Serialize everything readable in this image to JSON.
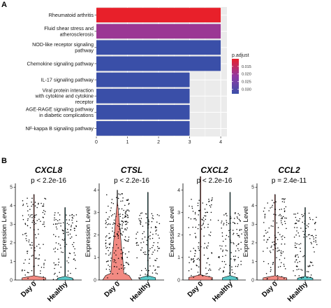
{
  "panels": {
    "a_label": "A",
    "b_label": "B"
  },
  "chart_data": [
    {
      "type": "bar",
      "orientation": "horizontal",
      "categories": [
        "Rheumatoid arthritis",
        "Fluid shear stress and atherosclerosis",
        "NOD-like receptor signaling pathway",
        "Chemokine signaling pathway",
        "IL-17 signaling pathway",
        "Viral protein interaction with cytokine and cytokine receptor",
        "AGE-RAGE signaling pathway in diabetic complications",
        "NF-kappa B signaling pathway"
      ],
      "category_lines": [
        [
          "Rheumatoid arthritis"
        ],
        [
          "Fluid shear stress and",
          "atherosclerosis"
        ],
        [
          "NOD-like receptor signaling",
          "pathway"
        ],
        [
          "Chemokine signaling pathway"
        ],
        [
          "IL-17 signaling pathway"
        ],
        [
          "Viral protein interaction",
          "with cytokine and cytokine",
          "receptor"
        ],
        [
          "AGE-RAGE signaling pathway",
          "in diabetic complications"
        ],
        [
          "NF-kappa B signaling pathway"
        ]
      ],
      "values": [
        4,
        4,
        4,
        4,
        3,
        3,
        3,
        3
      ],
      "p_adjust": [
        0.002,
        0.02,
        0.033,
        0.033,
        0.033,
        0.033,
        0.033,
        0.033
      ],
      "xlim": [
        0,
        4.2
      ],
      "xticks": [
        "0",
        "1",
        "2",
        "3",
        "4"
      ],
      "legend": {
        "title": "p.adjust",
        "ticks": [
          "0.015",
          "0.020",
          "0.025",
          "0.030"
        ],
        "range": [
          0.01,
          0.033
        ],
        "colors": [
          "#e8202a",
          "#8f3aa4",
          "#3a4fa8"
        ],
        "position": "right"
      },
      "grid": true
    },
    {
      "type": "violin",
      "panels": [
        {
          "gene": "CXCL8",
          "pvalue": "p < 2.2e-16",
          "ymax": 5.2,
          "yticks": [
            "0",
            "1",
            "2",
            "3",
            "4",
            "5"
          ],
          "groups": [
            "Day 0",
            "Healthy"
          ],
          "day0_highlight": false
        },
        {
          "gene": "CTSL",
          "pvalue": "p < 2.2e-16",
          "ymax": 4.3,
          "yticks": [
            "0",
            "1",
            "2",
            "3",
            "4"
          ],
          "groups": [
            "Day 0",
            "Healthy"
          ],
          "day0_highlight": true
        },
        {
          "gene": "CXCL2",
          "pvalue": "p < 2.2e-16",
          "ymax": 4.3,
          "yticks": [
            "0",
            "1",
            "2",
            "3",
            "4"
          ],
          "groups": [
            "Day 0",
            "Healthy"
          ],
          "day0_highlight": false
        },
        {
          "gene": "CCL2",
          "pvalue": "p = 2.4e-11",
          "ymax": 5.2,
          "yticks": [
            "0",
            "1",
            "2",
            "3",
            "4",
            "5"
          ],
          "groups": [
            "Day 0",
            "Healthy"
          ],
          "day0_highlight": false
        }
      ],
      "ylabel": "Expression Level",
      "colors": {
        "day0": "#f28a82",
        "healthy": "#59c9c9"
      }
    }
  ]
}
